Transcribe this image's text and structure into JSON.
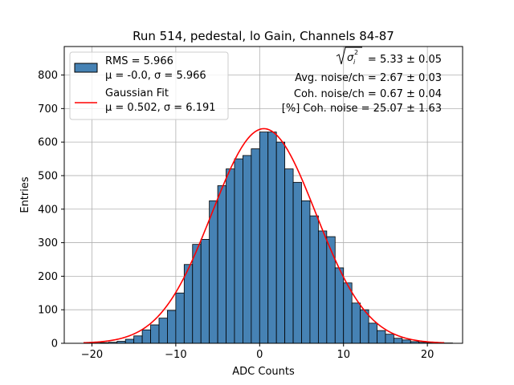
{
  "chart_data": {
    "type": "bar",
    "title": "Run 514, pedestal, lo Gain, Channels 84-87",
    "xlabel": "ADC Counts",
    "ylabel": "Entries",
    "xlim": [
      -23.3,
      24.2
    ],
    "ylim": [
      0,
      885
    ],
    "xticks": [
      -20,
      -10,
      0,
      10,
      20
    ],
    "xtick_labels": [
      "−20",
      "−10",
      "0",
      "10",
      "20"
    ],
    "yticks": [
      0,
      100,
      200,
      300,
      400,
      500,
      600,
      700,
      800
    ],
    "grid": true,
    "legend_position": "top-left",
    "colors": {
      "bars": "#4682b4",
      "bar_edge": "#000000",
      "fit": "#ff0000",
      "grid": "#b0b0b0"
    },
    "histogram": {
      "name": "RMS = 5.966",
      "legend_lines": [
        "RMS = 5.966",
        "μ = -0.0, σ = 5.966"
      ],
      "bin_edges": [
        -20,
        -19,
        -18,
        -17,
        -16,
        -15,
        -14,
        -13,
        -12,
        -11,
        -10,
        -9,
        -8,
        -7,
        -6,
        -5,
        -4,
        -3,
        -2,
        -1,
        0,
        1,
        2,
        3,
        4,
        5,
        6,
        7,
        8,
        9,
        10,
        11,
        12,
        13,
        14,
        15,
        16,
        17,
        18,
        19,
        20,
        21,
        22,
        23
      ],
      "counts": [
        1,
        2,
        3,
        6,
        12,
        22,
        40,
        55,
        75,
        98,
        150,
        235,
        295,
        310,
        425,
        470,
        520,
        550,
        560,
        580,
        630,
        630,
        600,
        520,
        480,
        425,
        380,
        335,
        318,
        225,
        180,
        120,
        100,
        60,
        38,
        27,
        15,
        10,
        5,
        3,
        2,
        1,
        1
      ]
    },
    "fit": {
      "name": "Gaussian Fit",
      "legend_lines": [
        "Gaussian Fit",
        "μ = 0.502, σ = 6.191"
      ],
      "mu": 0.502,
      "sigma": 6.191,
      "amplitude": 640,
      "x_range": [
        -21,
        22
      ]
    },
    "stats_lines": [
      "Avg. noise/ch = 2.67 ± 0.03",
      "Coh. noise/ch = 0.67 ± 0.04",
      "[%] Coh. noise = 25.07 ± 1.63"
    ],
    "sigma_sum_value": "= 5.33 ± 0.05"
  }
}
